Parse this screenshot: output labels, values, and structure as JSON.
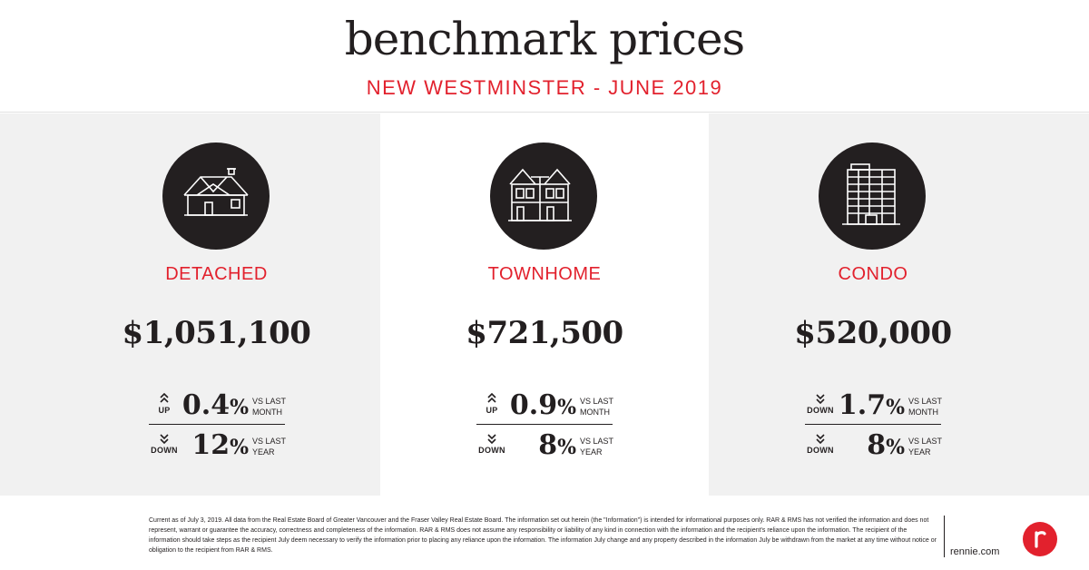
{
  "header": {
    "title": "benchmark prices",
    "subtitle": "NEW WESTMINSTER - JUNE 2019"
  },
  "accent_color": "#e2212d",
  "panel_bg_color": "#f1f1f1",
  "panels": [
    {
      "icon": "detached-house-icon",
      "type_label": "DETACHED",
      "price": "$1,051,100",
      "stats": [
        {
          "direction": "UP",
          "direction_icon": "chevron-up-icon",
          "value": "0.4",
          "unit": "%",
          "period_line1": "VS LAST",
          "period_line2": "MONTH"
        },
        {
          "direction": "DOWN",
          "direction_icon": "chevron-down-icon",
          "value": "12",
          "unit": "%",
          "period_line1": "VS LAST",
          "period_line2": "YEAR"
        }
      ]
    },
    {
      "icon": "townhome-icon",
      "type_label": "TOWNHOME",
      "price": "$721,500",
      "stats": [
        {
          "direction": "UP",
          "direction_icon": "chevron-up-icon",
          "value": "0.9",
          "unit": "%",
          "period_line1": "VS LAST",
          "period_line2": "MONTH"
        },
        {
          "direction": "DOWN",
          "direction_icon": "chevron-down-icon",
          "value": "8",
          "unit": "%",
          "period_line1": "VS LAST",
          "period_line2": "YEAR"
        }
      ]
    },
    {
      "icon": "condo-building-icon",
      "type_label": "CONDO",
      "price": "$520,000",
      "stats": [
        {
          "direction": "DOWN",
          "direction_icon": "chevron-down-icon",
          "value": "1.7",
          "unit": "%",
          "period_line1": "VS LAST",
          "period_line2": "MONTH"
        },
        {
          "direction": "DOWN",
          "direction_icon": "chevron-down-icon",
          "value": "8",
          "unit": "%",
          "period_line1": "VS LAST",
          "period_line2": "YEAR"
        }
      ]
    }
  ],
  "footer": {
    "disclaimer": "Current as of July 3, 2019. All data from the Real Estate Board of Greater Vancouver and the Fraser Valley Real Estate Board. The information set out herein (the \"Information\") is intended for informational purposes only. RAR & RMS has not verified the information and does not represent, warrant or guarantee the accuracy, correctness and completeness of the information. RAR & RMS does not assume any responsibility or liability of any kind in connection with the information and the recipient's reliance upon the information. The recipient of the information should take steps as the recipient July deem necessary to verify the information prior to placing any reliance upon the information. The information July change and any property described in the information July be withdrawn from the market at any time without notice or obligation to the recipient from RAR & RMS.",
    "website": "rennie.com",
    "logo_letter": "r",
    "logo_icon": "rennie-logo-icon"
  }
}
